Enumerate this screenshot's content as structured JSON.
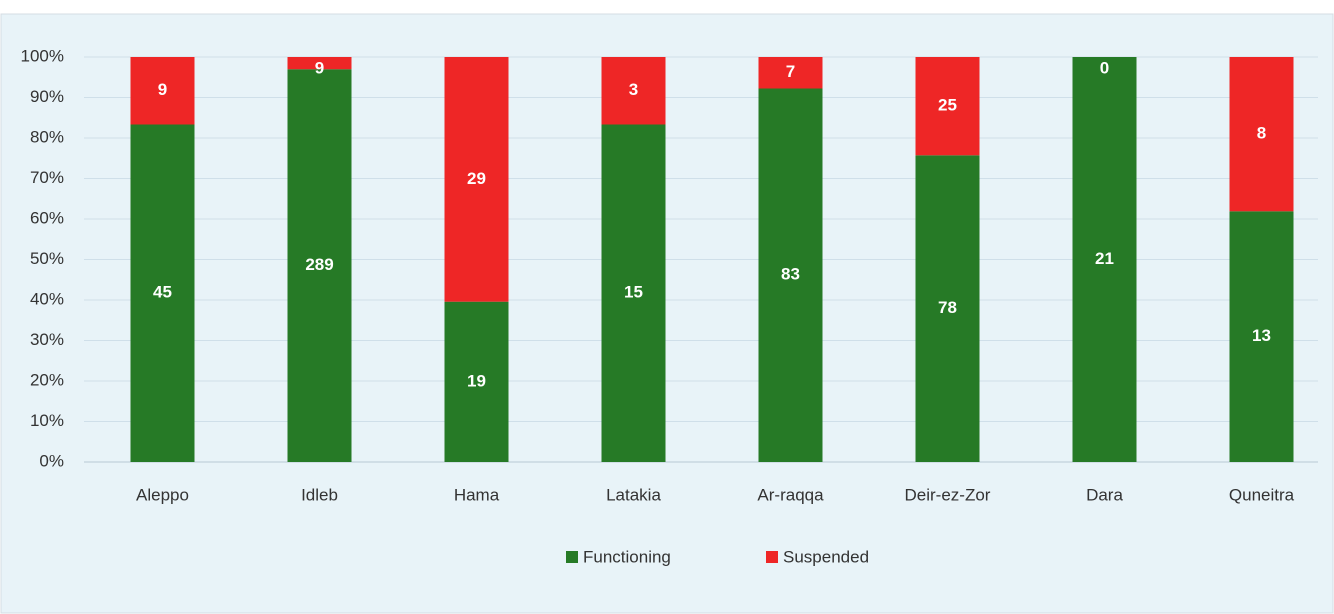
{
  "chart_data": {
    "type": "bar",
    "stacking": "percent",
    "categories": [
      "Aleppo",
      "Idleb",
      "Hama",
      "Latakia",
      "Ar-raqqa",
      "Deir-ez-Zor",
      "Dara",
      "Quneitra"
    ],
    "series": [
      {
        "name": "Functioning",
        "color": "#267a26",
        "values": [
          45,
          289,
          19,
          15,
          83,
          78,
          21,
          13
        ]
      },
      {
        "name": "Suspended",
        "color": "#ee2626",
        "values": [
          9,
          9,
          29,
          3,
          7,
          25,
          0,
          8
        ]
      }
    ],
    "ylim": [
      0,
      100
    ],
    "yticks": [
      {
        "value": 0,
        "label": "0%"
      },
      {
        "value": 10,
        "label": "10%"
      },
      {
        "value": 20,
        "label": "20%"
      },
      {
        "value": 30,
        "label": "30%"
      },
      {
        "value": 40,
        "label": "40%"
      },
      {
        "value": 50,
        "label": "50%"
      },
      {
        "value": 60,
        "label": "60%"
      },
      {
        "value": 70,
        "label": "70%"
      },
      {
        "value": 80,
        "label": "80%"
      },
      {
        "value": 90,
        "label": "90%"
      },
      {
        "value": 100,
        "label": "100%"
      }
    ],
    "grid": true,
    "legend": "bottom"
  }
}
